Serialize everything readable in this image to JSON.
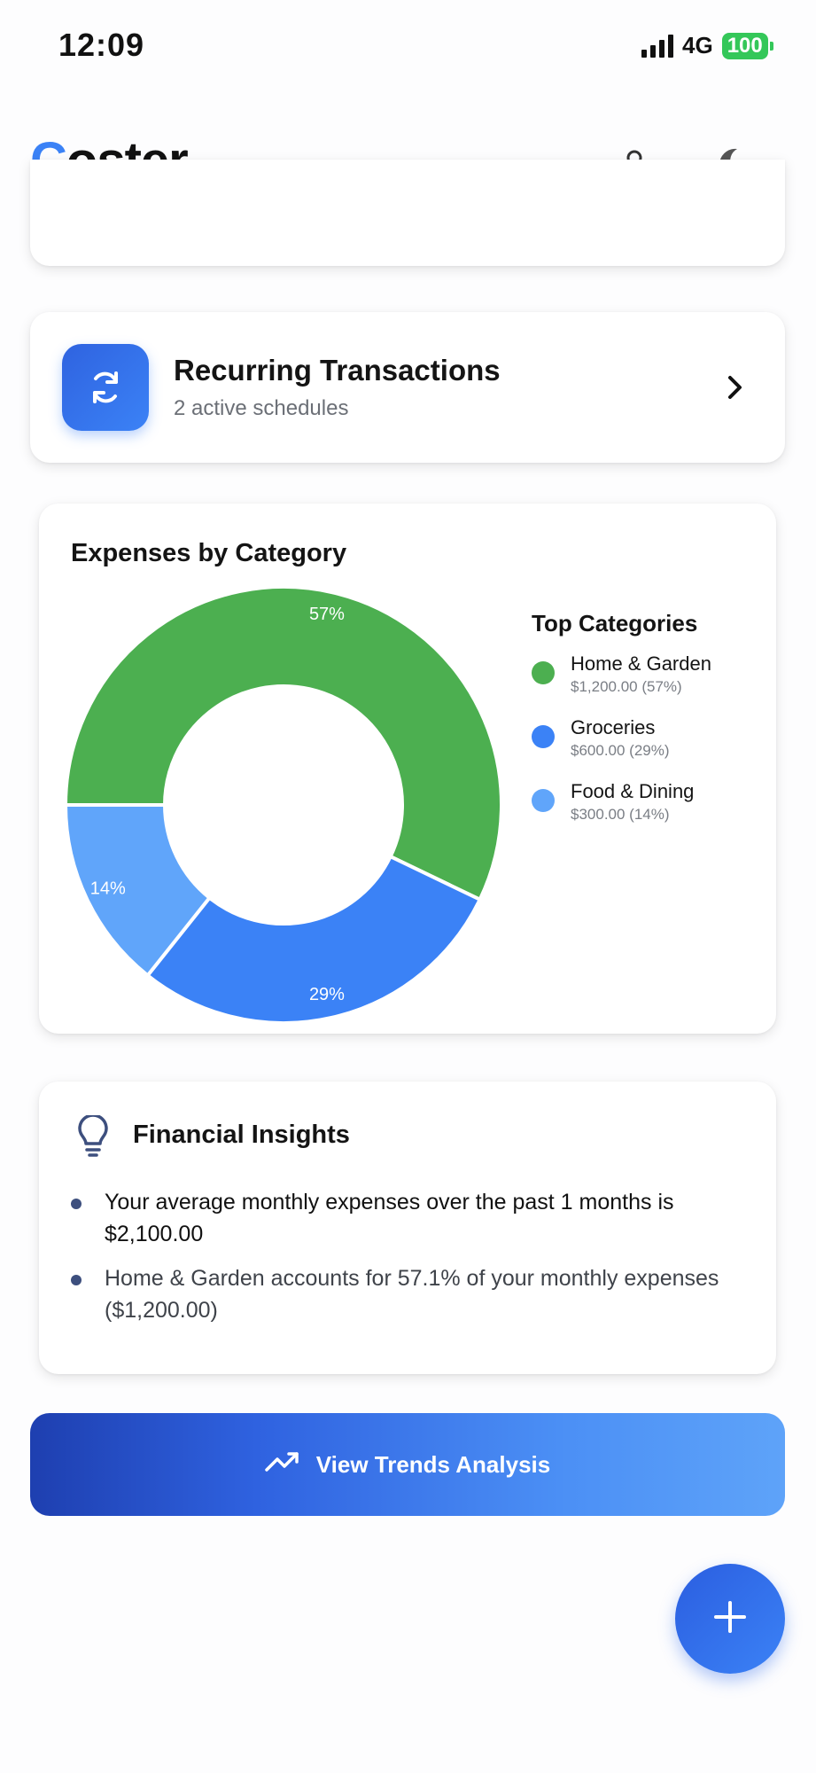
{
  "status": {
    "time": "12:09",
    "network": "4G",
    "battery": "100"
  },
  "header": {
    "logo_first": "C",
    "logo_rest": "oster",
    "icons": [
      "user-icon",
      "moon-icon"
    ]
  },
  "recurring": {
    "title": "Recurring Transactions",
    "subtitle": "2 active schedules",
    "icon": "refresh-icon"
  },
  "chart_section": {
    "title": "Expenses by Category",
    "legend_title": "Top Categories",
    "legend": [
      {
        "name": "Home & Garden",
        "detail": "$1,200.00 (57%)",
        "color": "#4caf50"
      },
      {
        "name": "Groceries",
        "detail": "$600.00 (29%)",
        "color": "#3b82f6"
      },
      {
        "name": "Food & Dining",
        "detail": "$300.00 (14%)",
        "color": "#60a5fa"
      }
    ]
  },
  "chart_data": {
    "type": "pie",
    "donut": true,
    "categories": [
      "Home & Garden",
      "Groceries",
      "Food & Dining"
    ],
    "values": [
      1200,
      600,
      300
    ],
    "labels": [
      "57%",
      "29%",
      "14%"
    ],
    "colors": [
      "#4caf50",
      "#3b82f6",
      "#60a5fa"
    ]
  },
  "insights": {
    "title": "Financial Insights",
    "items": [
      "Your average monthly expenses over the past 1 months is $2,100.00",
      "Home & Garden accounts for 57.1% of your monthly expenses ($1,200.00)"
    ]
  },
  "trends_button": {
    "label": "View Trends Analysis",
    "icon": "trending-up-icon"
  },
  "fab": {
    "icon": "plus-icon"
  }
}
